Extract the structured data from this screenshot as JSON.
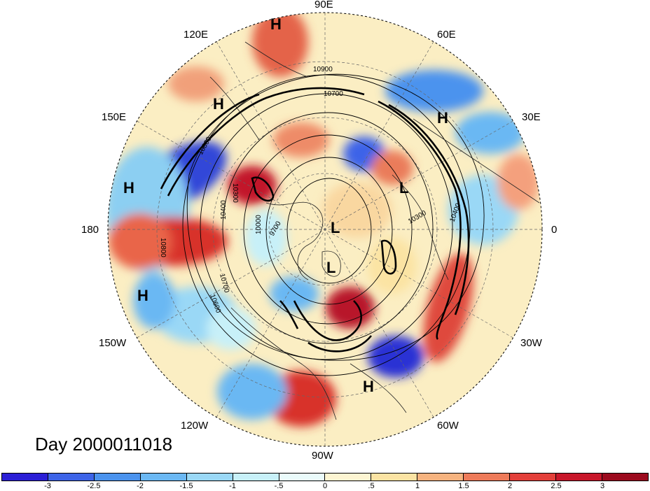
{
  "title": "Day 2000011018",
  "longitude_labels": {
    "lon_90e": "90E",
    "lon_60e": "60E",
    "lon_30e": "30E",
    "lon_0": "0",
    "lon_30w": "30W",
    "lon_60w": "60W",
    "lon_90w": "90W",
    "lon_120w": "120W",
    "lon_150w": "150W",
    "lon_180": "180",
    "lon_150e": "150E",
    "lon_120e": "120E"
  },
  "pressure_markers": [
    {
      "type": "H"
    },
    {
      "type": "H"
    },
    {
      "type": "H"
    },
    {
      "type": "H"
    },
    {
      "type": "H"
    },
    {
      "type": "H"
    },
    {
      "type": "L"
    },
    {
      "type": "L"
    },
    {
      "type": "L"
    }
  ],
  "contour_labels": [
    "10900",
    "10700",
    "10800",
    "10300",
    "10400",
    "10000",
    "9700",
    "10600",
    "10700",
    "10300",
    "10400",
    "10800"
  ],
  "colorbar": {
    "colors": [
      "#2b1fd6",
      "#3d64e8",
      "#4b93ee",
      "#6bb8f3",
      "#9ad8f6",
      "#c7f0f8",
      "#eafbfb",
      "#fdf5d2",
      "#fbe3a3",
      "#f6b37f",
      "#ee7b5a",
      "#e3403a",
      "#c8172a",
      "#9c0b1e"
    ],
    "ticks": [
      "-3",
      "-2.5",
      "-2",
      "-1.5",
      "-1",
      "-.5",
      "0",
      ".5",
      "1",
      "1.5",
      "2",
      "2.5",
      "3"
    ]
  }
}
